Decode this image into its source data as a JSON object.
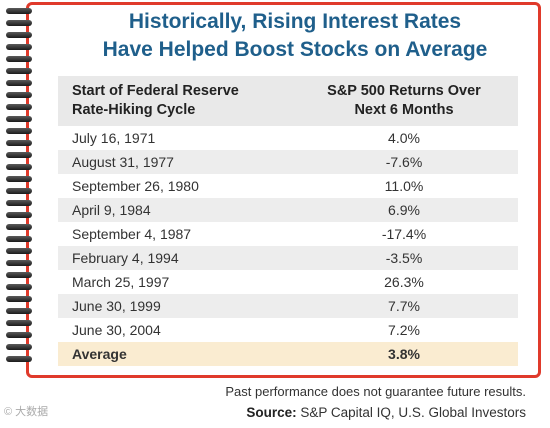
{
  "title": {
    "line1": "Historically, Rising Interest Rates",
    "line2": "Have Helped Boost Stocks on Average"
  },
  "table": {
    "headers": {
      "col1_line1": "Start of Federal Reserve",
      "col1_line2": "Rate-Hiking Cycle",
      "col2_line1": "S&P 500 Returns Over",
      "col2_line2": "Next 6 Months"
    },
    "rows": [
      {
        "date": "July 16, 1971",
        "return": "4.0%"
      },
      {
        "date": "August 31, 1977",
        "return": "-7.6%"
      },
      {
        "date": "September 26, 1980",
        "return": "11.0%"
      },
      {
        "date": "April 9, 1984",
        "return": "6.9%"
      },
      {
        "date": "September 4, 1987",
        "return": "-17.4%"
      },
      {
        "date": "February 4, 1994",
        "return": "-3.5%"
      },
      {
        "date": "March 25, 1997",
        "return": "26.3%"
      },
      {
        "date": "June 30, 1999",
        "return": "7.7%"
      },
      {
        "date": "June 30, 2004",
        "return": "7.2%"
      }
    ],
    "average": {
      "label": "Average",
      "value": "3.8%"
    }
  },
  "footer": {
    "disclaimer": "Past performance does not guarantee future results.",
    "source_label": "Source:",
    "source_text": "S&P Capital IQ, U.S. Global Investors"
  },
  "watermark": "© 大数据"
}
